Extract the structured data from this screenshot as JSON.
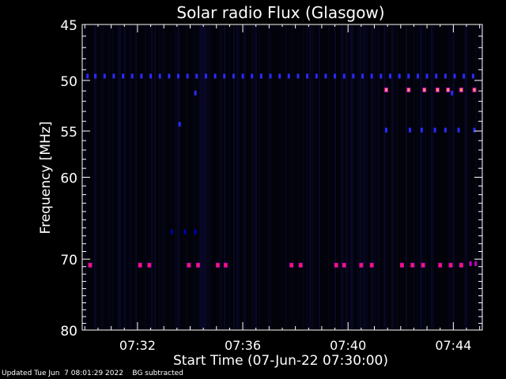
{
  "chart_data": {
    "type": "heatmap",
    "title": "Solar radio Flux (Glasgow)",
    "xlabel": "Start Time (07-Jun-22 07:30:00)",
    "ylabel": "Frequency [MHz]",
    "x_unit": "minutes after 07:30:00",
    "xlim": [
      -0.1,
      15.1
    ],
    "ylim": [
      45,
      80
    ],
    "y_scale": "log",
    "y_ticks": [
      45,
      50,
      55,
      60,
      70,
      80
    ],
    "y_tick_labels": [
      "45",
      "50",
      "55",
      "60",
      "70",
      "80"
    ],
    "x_ticks": [
      2,
      6,
      10,
      14
    ],
    "x_tick_labels": [
      "07:32",
      "07:36",
      "07:40",
      "07:44"
    ],
    "color_scale": [
      "#0000b0",
      "#2a2aff",
      "#c800c8",
      "#ff1e50",
      "#ff9a50"
    ],
    "background": "#000000",
    "emission": [
      {
        "freq": 49.6,
        "level": 1,
        "times": [
          0.1,
          0.4,
          0.75,
          1.1,
          1.45,
          1.8,
          2.15,
          2.5,
          2.85,
          3.2,
          3.55,
          3.9,
          4.25,
          4.6,
          4.95,
          5.3,
          5.65,
          6.0,
          6.35,
          6.7,
          7.05,
          7.4,
          7.75,
          8.1,
          8.45,
          8.8,
          9.15,
          9.5,
          9.85,
          10.2,
          10.55,
          10.9,
          11.25,
          11.6,
          11.95,
          12.3,
          12.65,
          13.0,
          13.35,
          13.7,
          14.05,
          14.4,
          14.75
        ]
      },
      {
        "freq": 50.9,
        "level": 4,
        "times": [
          11.45,
          12.3,
          12.9,
          13.4,
          13.8,
          14.3,
          14.8
        ]
      },
      {
        "freq": 51.2,
        "level": 1,
        "times": [
          4.2,
          13.95
        ]
      },
      {
        "freq": 54.3,
        "level": 1,
        "times": [
          3.6
        ]
      },
      {
        "freq": 54.9,
        "level": 1,
        "times": [
          11.45,
          12.35,
          12.8,
          13.3,
          13.7,
          14.2,
          14.8
        ]
      },
      {
        "freq": 66.5,
        "level": 0,
        "times": [
          3.3,
          3.8,
          4.2
        ]
      },
      {
        "freq": 70.8,
        "level": 3,
        "times": [
          0.2,
          2.1,
          2.45,
          3.95,
          4.3,
          5.05,
          5.35,
          7.85,
          8.2,
          9.55,
          9.85,
          10.5,
          10.9,
          12.05,
          12.45,
          12.85,
          13.5,
          13.9,
          14.3
        ]
      },
      {
        "freq": 70.6,
        "level": 2,
        "times": [
          14.65,
          14.85
        ]
      }
    ]
  },
  "footer": {
    "updated": "Updated Tue Jun  7 08:01:29 2022",
    "bg": "BG subtracted"
  }
}
